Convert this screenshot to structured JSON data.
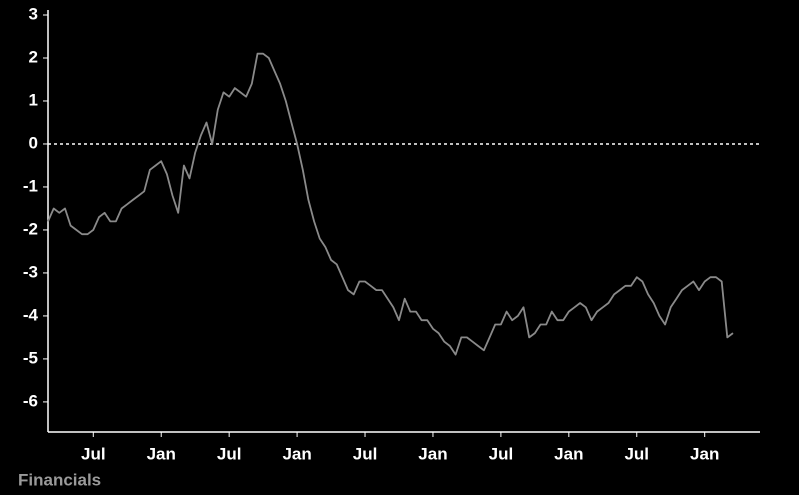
{
  "chart_data": {
    "type": "line",
    "title": "Financials",
    "categories": [
      null,
      null,
      null,
      null,
      null,
      null,
      null,
      null,
      "Jul",
      null,
      null,
      null,
      null,
      null,
      null,
      null,
      null,
      null,
      null,
      null,
      "Jan",
      null,
      null,
      null,
      null,
      null,
      null,
      null,
      null,
      null,
      null,
      null,
      "Jul",
      null,
      null,
      null,
      null,
      null,
      null,
      null,
      null,
      null,
      null,
      null,
      "Jan",
      null,
      null,
      null,
      null,
      null,
      null,
      null,
      null,
      null,
      null,
      null,
      "Jul",
      null,
      null,
      null,
      null,
      null,
      null,
      null,
      null,
      null,
      null,
      null,
      "Jan",
      null,
      null,
      null,
      null,
      null,
      null,
      null,
      null,
      null,
      null,
      null,
      "Jul",
      null,
      null,
      null,
      null,
      null,
      null,
      null,
      null,
      null,
      null,
      null,
      "Jan",
      null,
      null,
      null,
      null,
      null,
      null,
      null,
      null,
      null,
      null,
      null,
      "Jul",
      null,
      null,
      null,
      null,
      null,
      null,
      null,
      null,
      null,
      null,
      null,
      "Jan",
      null,
      null,
      null,
      null,
      null
    ],
    "values": [
      -1.8,
      -1.5,
      -1.6,
      -1.5,
      -1.9,
      -2.0,
      -2.1,
      -2.1,
      -2.0,
      -1.7,
      -1.6,
      -1.8,
      -1.8,
      -1.5,
      -1.4,
      -1.3,
      -1.2,
      -1.1,
      -0.6,
      -0.5,
      -0.4,
      -0.7,
      -1.2,
      -1.6,
      -0.5,
      -0.8,
      -0.2,
      0.2,
      0.5,
      0.0,
      0.8,
      1.2,
      1.1,
      1.3,
      1.2,
      1.1,
      1.4,
      2.1,
      2.1,
      2.0,
      1.7,
      1.4,
      1.0,
      0.5,
      0.0,
      -0.6,
      -1.3,
      -1.8,
      -2.2,
      -2.4,
      -2.7,
      -2.8,
      -3.1,
      -3.4,
      -3.5,
      -3.2,
      -3.2,
      -3.3,
      -3.4,
      -3.4,
      -3.6,
      -3.8,
      -4.1,
      -3.6,
      -3.9,
      -3.9,
      -4.1,
      -4.1,
      -4.3,
      -4.4,
      -4.6,
      -4.7,
      -4.9,
      -4.5,
      -4.5,
      -4.6,
      -4.7,
      -4.8,
      -4.5,
      -4.2,
      -4.2,
      -3.9,
      -4.1,
      -4.0,
      -3.8,
      -4.5,
      -4.4,
      -4.2,
      -4.2,
      -3.9,
      -4.1,
      -4.1,
      -3.9,
      -3.8,
      -3.7,
      -3.8,
      -4.1,
      -3.9,
      -3.8,
      -3.7,
      -3.5,
      -3.4,
      -3.3,
      -3.3,
      -3.1,
      -3.2,
      -3.5,
      -3.7,
      -4.0,
      -4.2,
      -3.8,
      -3.6,
      -3.4,
      -3.3,
      -3.2,
      -3.4,
      -3.2,
      -3.1,
      -3.1,
      -3.2,
      -4.5,
      -4.4
    ],
    "color": "#8a8a8a",
    "ylim": [
      -6.7,
      3
    ],
    "yticks": [
      3,
      2,
      1,
      0,
      -1,
      -2,
      -3,
      -4,
      -5,
      -6
    ],
    "reference_line": 0
  }
}
